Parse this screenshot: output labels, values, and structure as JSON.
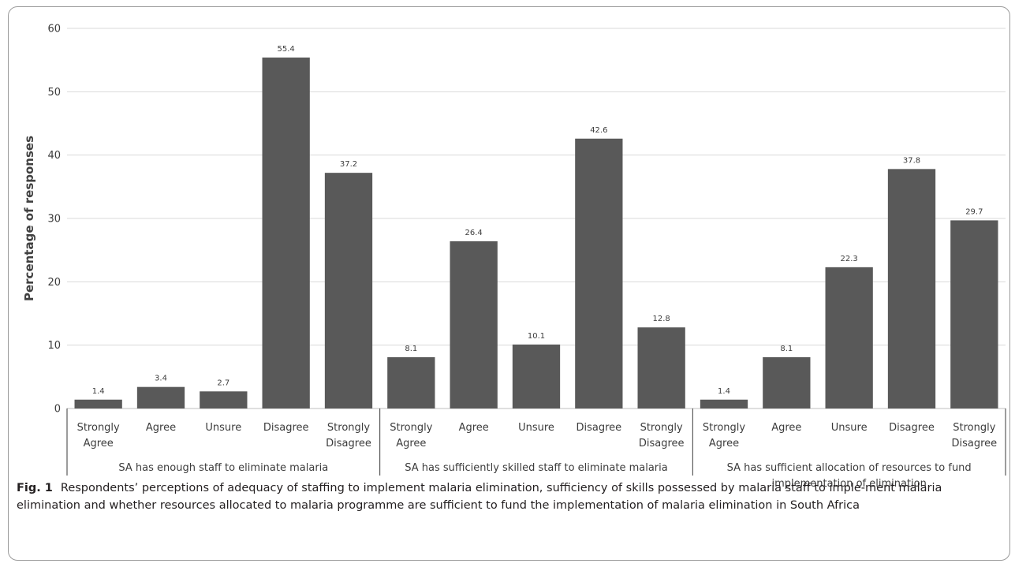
{
  "chart_data": {
    "type": "bar",
    "ylabel": "Percentage of responses",
    "ylim": [
      0,
      60
    ],
    "yticks": [
      0,
      10,
      20,
      30,
      40,
      50,
      60
    ],
    "grid": true,
    "bar_color": "#595959",
    "groups": [
      {
        "label_lines": [
          "SA has enough staff to eliminate malaria"
        ],
        "categories": [
          [
            "Strongly",
            "Agree"
          ],
          [
            "Agree"
          ],
          [
            "Unsure"
          ],
          [
            "Disagree"
          ],
          [
            "Strongly",
            "Disagree"
          ]
        ],
        "values": [
          1.4,
          3.4,
          2.7,
          55.4,
          37.2
        ]
      },
      {
        "label_lines": [
          "SA has sufficiently skilled staff to eliminate malaria"
        ],
        "categories": [
          [
            "Strongly",
            "Agree"
          ],
          [
            "Agree"
          ],
          [
            "Unsure"
          ],
          [
            "Disagree"
          ],
          [
            "Strongly",
            "Disagree"
          ]
        ],
        "values": [
          8.1,
          26.4,
          10.1,
          42.6,
          12.8
        ]
      },
      {
        "label_lines": [
          "SA has sufficient allocation of resources to fund",
          "implementation of elimination"
        ],
        "categories": [
          [
            "Strongly",
            "Agree"
          ],
          [
            "Agree"
          ],
          [
            "Unsure"
          ],
          [
            "Disagree"
          ],
          [
            "Strongly",
            "Disagree"
          ]
        ],
        "values": [
          1.4,
          8.1,
          22.3,
          37.8,
          29.7
        ]
      }
    ]
  },
  "caption": {
    "label": "Fig. 1",
    "text": "Respondents’ perceptions of adequacy of staffing to implement malaria elimination, sufficiency of skills possessed by malaria staff to imple-ment malaria elimination and whether resources allocated to malaria programme are sufficient to fund the implementation of malaria elimination in South Africa"
  }
}
